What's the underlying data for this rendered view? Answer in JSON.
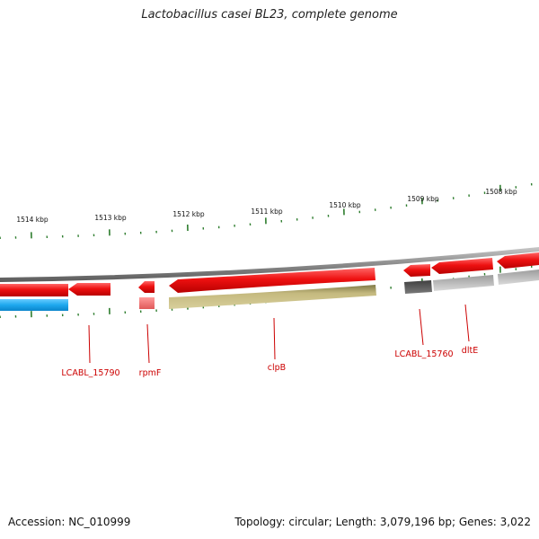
{
  "title": "Lactobacillus casei BL23, complete genome",
  "footer": {
    "accession": "Accession: NC_010999",
    "topology": "Topology: circular; Length: 3,079,196 bp; Genes: 3,022"
  },
  "colors": {
    "forward_cds": "#ee1111",
    "reverse_cds": "#22aaee",
    "trna_feature": "#ee7777",
    "clpb_feature": "#bfb47a",
    "grey_feature": "#5f5f5f",
    "light_grey_feature": "#b9b9b9",
    "backbone": "#909090",
    "tick": "#2e7d2e",
    "label": "#cc0000"
  },
  "scale": {
    "labels": [
      "1514 kbp",
      "1513 kbp",
      "1512 kbp",
      "1511 kbp",
      "1510 kbp",
      "1509 kbp",
      "1508 kbp"
    ]
  },
  "features": [
    {
      "name": "forward-cds",
      "strand": "+",
      "color": "red"
    },
    {
      "name": "forward-cds",
      "strand": "+",
      "color": "red"
    },
    {
      "name": "forward-cds",
      "strand": "+",
      "color": "red"
    },
    {
      "name": "forward-cds",
      "strand": "+",
      "color": "red"
    },
    {
      "name": "forward-cds",
      "strand": "+",
      "color": "red"
    },
    {
      "name": "forward-cds",
      "strand": "+",
      "color": "red"
    },
    {
      "name": "forward-cds",
      "strand": "+",
      "color": "red"
    },
    {
      "name": "reverse-cds",
      "strand": "-",
      "color": "blue"
    }
  ],
  "gene_labels": [
    "LCABL_15790",
    "rpmF",
    "clpB",
    "LCABL_15760",
    "dltE"
  ]
}
